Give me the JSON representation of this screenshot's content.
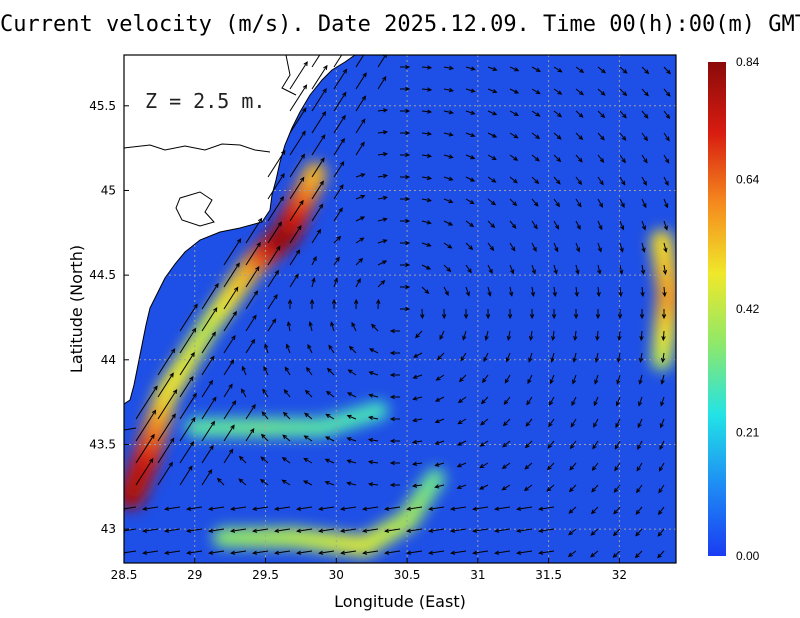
{
  "chart_data": {
    "type": "heatmap",
    "title": "Current velocity (m/s). Date 2025.12.09. Time 00(h):00(m) GMT",
    "xlabel": "Longitude (East)",
    "ylabel": "Latitude (North)",
    "annotation": "Z = 2.5 m.",
    "xlim": [
      28.5,
      32.4
    ],
    "ylim": [
      42.8,
      45.8
    ],
    "xticks": [
      28.5,
      29,
      29.5,
      30,
      30.5,
      31,
      31.5,
      32
    ],
    "xtick_labels": [
      "28.5",
      "29",
      "29.5",
      "30",
      "30.5",
      "31",
      "31.5",
      "32"
    ],
    "yticks": [
      43,
      43.5,
      44,
      44.5,
      45,
      45.5
    ],
    "ytick_labels": [
      "43",
      "43.5",
      "44",
      "44.5",
      "45",
      "45.5"
    ],
    "grid": true,
    "colorbar": {
      "min": 0.0,
      "max": 0.84,
      "ticks": [
        0.0,
        0.21,
        0.42,
        0.64,
        0.84
      ],
      "tick_labels": [
        "0.00",
        "0.21",
        "0.42",
        "0.64",
        "0.84"
      ],
      "colormap": [
        "#1a3cf2",
        "#1e8cf5",
        "#22e3e6",
        "#8ee86a",
        "#f0e82a",
        "#f58a1e",
        "#d81c10",
        "#8a0a0a"
      ]
    },
    "colors": {
      "sea_base": "#1e4fe6",
      "land": "#ffffff",
      "coast": "#000000",
      "arrow": "#000000",
      "grid": "#a0a0a0"
    },
    "velocity_features": [
      {
        "name": "western rim current",
        "lon": [
          28.55,
          28.65,
          28.8,
          29.1,
          29.4,
          29.65,
          29.85
        ],
        "lat": [
          43.2,
          43.4,
          43.8,
          44.2,
          44.55,
          44.75,
          45.1
        ],
        "speed": [
          0.8,
          0.76,
          0.5,
          0.42,
          0.55,
          0.84,
          0.55
        ]
      },
      {
        "name": "southern jet",
        "lon": [
          29.2,
          29.7,
          30.2,
          30.5,
          30.7
        ],
        "lat": [
          42.95,
          42.95,
          42.9,
          43.05,
          43.3
        ],
        "speed": [
          0.35,
          0.4,
          0.45,
          0.4,
          0.32
        ]
      },
      {
        "name": "mid band",
        "lon": [
          29.0,
          29.5,
          29.9,
          30.3
        ],
        "lat": [
          43.6,
          43.6,
          43.6,
          43.7
        ],
        "speed": [
          0.3,
          0.32,
          0.3,
          0.28
        ]
      },
      {
        "name": "eastern front",
        "lon": [
          32.3,
          32.35,
          32.3
        ],
        "lat": [
          44.0,
          44.4,
          44.7
        ],
        "speed": [
          0.4,
          0.58,
          0.5
        ]
      }
    ]
  }
}
